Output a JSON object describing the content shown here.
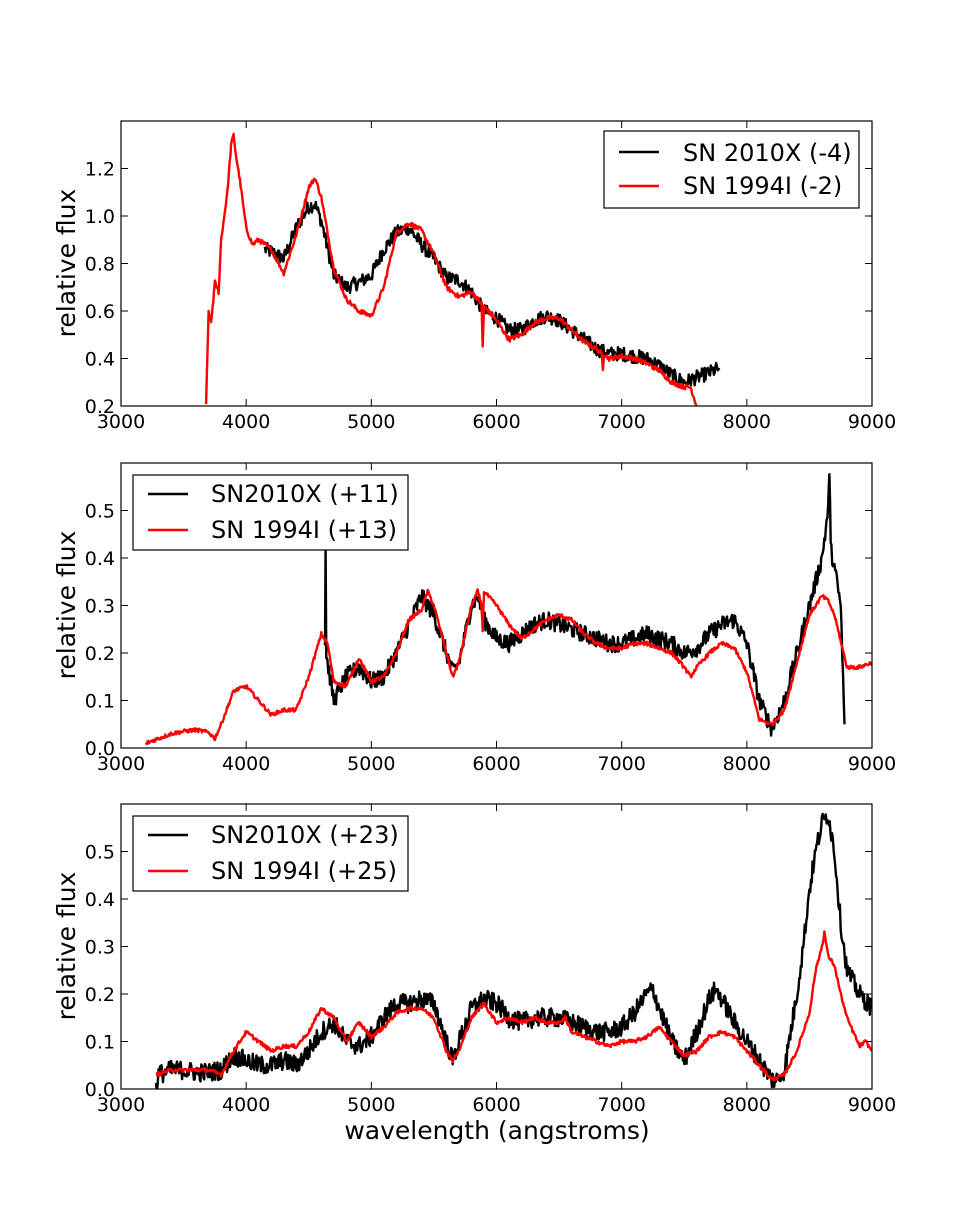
{
  "chart_data": [
    {
      "type": "line",
      "panel": "top",
      "xlabel": "",
      "ylabel": "relative flux",
      "xlim": [
        3000,
        9000
      ],
      "ylim": [
        0.2,
        1.4
      ],
      "xticks": [
        3000,
        4000,
        5000,
        6000,
        7000,
        8000,
        9000
      ],
      "yticks": [
        0.2,
        0.4,
        0.6,
        0.8,
        1.0,
        1.2
      ],
      "ytick_labels": [
        "0.2",
        "0.4",
        "0.6",
        "0.8",
        "1.0",
        "1.2"
      ],
      "legend_position": "top-right",
      "series": [
        {
          "name": "SN 2010X (-4)",
          "color": "#000000",
          "noise": 0.03,
          "x": [
            4150,
            4200,
            4300,
            4400,
            4500,
            4550,
            4600,
            4700,
            4800,
            4900,
            5000,
            5100,
            5200,
            5300,
            5400,
            5500,
            5600,
            5700,
            5800,
            5900,
            6000,
            6100,
            6200,
            6300,
            6400,
            6500,
            6600,
            6700,
            6800,
            6900,
            7000,
            7100,
            7200,
            7300,
            7400,
            7500,
            7600,
            7700,
            7780
          ],
          "y": [
            0.86,
            0.85,
            0.82,
            0.95,
            1.04,
            1.05,
            0.98,
            0.75,
            0.7,
            0.72,
            0.75,
            0.86,
            0.93,
            0.95,
            0.88,
            0.82,
            0.74,
            0.73,
            0.68,
            0.6,
            0.57,
            0.52,
            0.52,
            0.56,
            0.58,
            0.56,
            0.52,
            0.48,
            0.44,
            0.42,
            0.42,
            0.41,
            0.4,
            0.37,
            0.33,
            0.3,
            0.32,
            0.34,
            0.36
          ]
        },
        {
          "name": "SN 1994I (-2)",
          "color": "#ff0000",
          "noise": 0.01,
          "x": [
            3680,
            3700,
            3720,
            3750,
            3780,
            3800,
            3850,
            3880,
            3900,
            3920,
            3950,
            4000,
            4050,
            4100,
            4200,
            4300,
            4400,
            4500,
            4550,
            4600,
            4700,
            4800,
            4900,
            5000,
            5100,
            5200,
            5300,
            5400,
            5500,
            5600,
            5700,
            5800,
            5880,
            5890,
            5900,
            6000,
            6100,
            6200,
            6300,
            6400,
            6500,
            6600,
            6700,
            6800,
            6840,
            6850,
            6860,
            6900,
            7000,
            7100,
            7200,
            7300,
            7400,
            7500,
            7550,
            7600
          ],
          "y": [
            0.2,
            0.6,
            0.55,
            0.72,
            0.68,
            0.9,
            1.1,
            1.3,
            1.34,
            1.25,
            1.15,
            0.95,
            0.88,
            0.9,
            0.86,
            0.76,
            0.92,
            1.12,
            1.16,
            1.08,
            0.78,
            0.65,
            0.6,
            0.58,
            0.7,
            0.93,
            0.97,
            0.94,
            0.84,
            0.7,
            0.66,
            0.68,
            0.63,
            0.45,
            0.62,
            0.56,
            0.48,
            0.5,
            0.55,
            0.57,
            0.57,
            0.52,
            0.47,
            0.44,
            0.42,
            0.36,
            0.42,
            0.4,
            0.41,
            0.4,
            0.38,
            0.35,
            0.3,
            0.28,
            0.28,
            0.2
          ]
        }
      ]
    },
    {
      "type": "line",
      "panel": "middle",
      "xlabel": "",
      "ylabel": "relative flux",
      "xlim": [
        3000,
        9000
      ],
      "ylim": [
        0.0,
        0.6
      ],
      "xticks": [
        3000,
        4000,
        5000,
        6000,
        7000,
        8000,
        9000
      ],
      "yticks": [
        0.0,
        0.1,
        0.2,
        0.3,
        0.4,
        0.5
      ],
      "ytick_labels": [
        "0.0",
        "0.1",
        "0.2",
        "0.3",
        "0.4",
        "0.5"
      ],
      "legend_position": "top-left",
      "series": [
        {
          "name": "SN2010X (+11)",
          "color": "#000000",
          "noise": 0.018,
          "x": [
            4630,
            4635,
            4640,
            4650,
            4700,
            4800,
            4900,
            5000,
            5100,
            5200,
            5300,
            5400,
            5450,
            5500,
            5600,
            5650,
            5700,
            5800,
            5850,
            5900,
            6000,
            6100,
            6200,
            6300,
            6400,
            6500,
            6600,
            6700,
            6800,
            6900,
            7000,
            7100,
            7200,
            7300,
            7400,
            7500,
            7600,
            7700,
            7800,
            7900,
            8000,
            8100,
            8200,
            8300,
            8400,
            8500,
            8600,
            8650,
            8660,
            8670,
            8700,
            8750,
            8780
          ],
          "y": [
            0.22,
            0.42,
            0.2,
            0.18,
            0.1,
            0.15,
            0.17,
            0.14,
            0.15,
            0.2,
            0.26,
            0.32,
            0.3,
            0.28,
            0.2,
            0.16,
            0.18,
            0.3,
            0.32,
            0.27,
            0.23,
            0.22,
            0.24,
            0.26,
            0.27,
            0.26,
            0.25,
            0.24,
            0.23,
            0.22,
            0.22,
            0.23,
            0.24,
            0.23,
            0.22,
            0.2,
            0.21,
            0.24,
            0.26,
            0.27,
            0.22,
            0.1,
            0.04,
            0.1,
            0.2,
            0.3,
            0.4,
            0.5,
            0.59,
            0.42,
            0.38,
            0.3,
            0.05
          ]
        },
        {
          "name": "SN 1994I (+13)",
          "color": "#ff0000",
          "noise": 0.004,
          "x": [
            3200,
            3300,
            3400,
            3500,
            3600,
            3700,
            3750,
            3800,
            3900,
            4000,
            4100,
            4200,
            4300,
            4400,
            4500,
            4600,
            4650,
            4700,
            4800,
            4900,
            5000,
            5100,
            5200,
            5300,
            5400,
            5450,
            5500,
            5600,
            5650,
            5700,
            5800,
            5850,
            5880,
            5890,
            5900,
            6000,
            6100,
            6200,
            6300,
            6400,
            6500,
            6600,
            6700,
            6800,
            6900,
            7000,
            7100,
            7200,
            7300,
            7400,
            7500,
            7550,
            7600,
            7700,
            7800,
            7900,
            8000,
            8100,
            8200,
            8300,
            8400,
            8500,
            8600,
            8650,
            8700,
            8800,
            8900,
            9000
          ],
          "y": [
            0.01,
            0.02,
            0.03,
            0.035,
            0.038,
            0.033,
            0.02,
            0.05,
            0.12,
            0.13,
            0.1,
            0.07,
            0.08,
            0.08,
            0.15,
            0.24,
            0.22,
            0.14,
            0.13,
            0.19,
            0.14,
            0.15,
            0.2,
            0.27,
            0.29,
            0.33,
            0.3,
            0.2,
            0.15,
            0.18,
            0.3,
            0.33,
            0.3,
            0.25,
            0.33,
            0.3,
            0.26,
            0.23,
            0.25,
            0.27,
            0.28,
            0.27,
            0.24,
            0.22,
            0.21,
            0.21,
            0.22,
            0.22,
            0.21,
            0.2,
            0.17,
            0.15,
            0.17,
            0.2,
            0.22,
            0.21,
            0.16,
            0.06,
            0.05,
            0.08,
            0.18,
            0.28,
            0.32,
            0.31,
            0.28,
            0.17,
            0.17,
            0.18
          ]
        }
      ]
    },
    {
      "type": "line",
      "panel": "bottom",
      "xlabel": "wavelength (angstroms)",
      "ylabel": "relative flux",
      "xlim": [
        3000,
        9000
      ],
      "ylim": [
        0.0,
        0.6
      ],
      "xticks": [
        3000,
        4000,
        5000,
        6000,
        7000,
        8000,
        9000
      ],
      "yticks": [
        0.0,
        0.1,
        0.2,
        0.3,
        0.4,
        0.5
      ],
      "ytick_labels": [
        "0.0",
        "0.1",
        "0.2",
        "0.3",
        "0.4",
        "0.5"
      ],
      "legend_position": "top-left",
      "series": [
        {
          "name": "SN2010X (+23)",
          "color": "#000000",
          "noise": 0.02,
          "x": [
            3280,
            3300,
            3400,
            3500,
            3600,
            3700,
            3800,
            3900,
            4000,
            4100,
            4200,
            4300,
            4400,
            4500,
            4600,
            4700,
            4800,
            4900,
            5000,
            5100,
            5200,
            5300,
            5400,
            5500,
            5600,
            5650,
            5700,
            5800,
            5900,
            6000,
            6100,
            6200,
            6300,
            6400,
            6500,
            6600,
            6700,
            6800,
            6900,
            7000,
            7100,
            7200,
            7250,
            7300,
            7400,
            7500,
            7600,
            7700,
            7750,
            7800,
            7900,
            8000,
            8100,
            8200,
            8250,
            8300,
            8400,
            8450,
            8500,
            8550,
            8600,
            8650,
            8700,
            8750,
            8800,
            8900,
            9000
          ],
          "y": [
            0.0,
            0.03,
            0.04,
            0.04,
            0.035,
            0.035,
            0.04,
            0.07,
            0.06,
            0.05,
            0.05,
            0.06,
            0.05,
            0.08,
            0.12,
            0.14,
            0.1,
            0.09,
            0.11,
            0.15,
            0.18,
            0.18,
            0.19,
            0.18,
            0.1,
            0.06,
            0.1,
            0.17,
            0.19,
            0.18,
            0.15,
            0.14,
            0.15,
            0.15,
            0.15,
            0.14,
            0.13,
            0.12,
            0.12,
            0.13,
            0.16,
            0.2,
            0.21,
            0.17,
            0.1,
            0.06,
            0.12,
            0.19,
            0.21,
            0.19,
            0.14,
            0.1,
            0.06,
            0.02,
            0.02,
            0.04,
            0.2,
            0.3,
            0.42,
            0.5,
            0.56,
            0.58,
            0.5,
            0.35,
            0.25,
            0.2,
            0.17
          ]
        },
        {
          "name": "SN 1994I (+25)",
          "color": "#ff0000",
          "noise": 0.004,
          "x": [
            3280,
            3400,
            3500,
            3600,
            3700,
            3800,
            3900,
            4000,
            4100,
            4200,
            4300,
            4400,
            4500,
            4600,
            4700,
            4800,
            4900,
            5000,
            5100,
            5200,
            5300,
            5400,
            5500,
            5600,
            5650,
            5700,
            5800,
            5900,
            6000,
            6100,
            6200,
            6300,
            6400,
            6500,
            6550,
            6600,
            6700,
            6800,
            6900,
            7000,
            7100,
            7200,
            7300,
            7400,
            7500,
            7600,
            7700,
            7800,
            7900,
            8000,
            8100,
            8200,
            8300,
            8400,
            8500,
            8550,
            8600,
            8620,
            8650,
            8700,
            8750,
            8800,
            8850,
            8900,
            8950,
            9000
          ],
          "y": [
            0.03,
            0.04,
            0.04,
            0.04,
            0.04,
            0.03,
            0.08,
            0.12,
            0.1,
            0.08,
            0.09,
            0.09,
            0.12,
            0.17,
            0.15,
            0.1,
            0.14,
            0.11,
            0.13,
            0.16,
            0.17,
            0.17,
            0.15,
            0.08,
            0.06,
            0.08,
            0.15,
            0.18,
            0.14,
            0.15,
            0.14,
            0.15,
            0.14,
            0.14,
            0.15,
            0.12,
            0.11,
            0.1,
            0.09,
            0.1,
            0.1,
            0.11,
            0.13,
            0.1,
            0.07,
            0.08,
            0.11,
            0.12,
            0.11,
            0.08,
            0.05,
            0.02,
            0.03,
            0.08,
            0.16,
            0.25,
            0.3,
            0.33,
            0.28,
            0.26,
            0.2,
            0.15,
            0.12,
            0.09,
            0.1,
            0.08
          ]
        }
      ]
    }
  ]
}
